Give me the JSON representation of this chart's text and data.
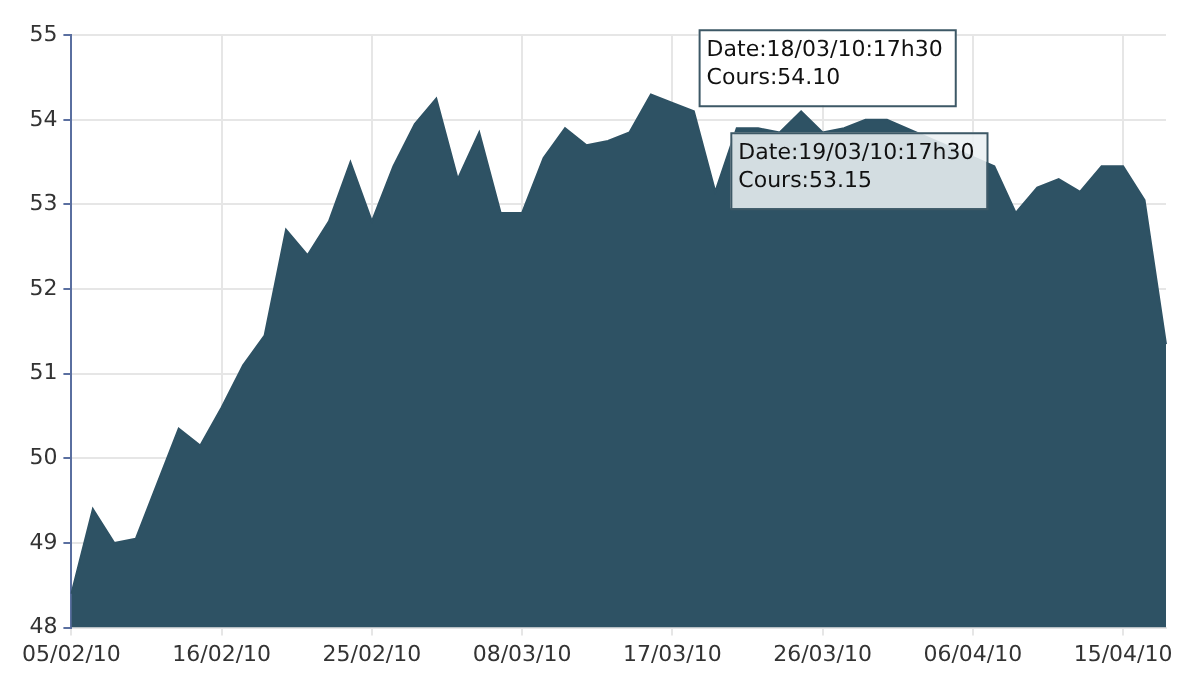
{
  "chart_data": {
    "type": "area",
    "color": "#2e5264",
    "categories": [
      "05/02/10",
      null,
      null,
      null,
      null,
      null,
      null,
      "16/02/10",
      null,
      null,
      null,
      null,
      null,
      null,
      "25/02/10",
      null,
      null,
      null,
      null,
      null,
      null,
      "08/03/10",
      null,
      null,
      null,
      null,
      null,
      null,
      "17/03/10",
      null,
      null,
      null,
      null,
      null,
      null,
      "26/03/10",
      null,
      null,
      null,
      null,
      null,
      null,
      "06/04/10",
      null,
      null,
      null,
      null,
      null,
      null,
      "15/04/10",
      null,
      null
    ],
    "values": [
      48.4,
      49.4,
      49.0,
      49.05,
      49.7,
      50.35,
      50.15,
      50.6,
      51.1,
      51.45,
      52.7,
      52.4,
      52.8,
      53.5,
      52.8,
      53.45,
      53.95,
      54.25,
      53.3,
      53.85,
      52.9,
      52.9,
      53.55,
      53.9,
      53.7,
      53.75,
      53.85,
      54.3,
      54.2,
      54.1,
      53.15,
      53.9,
      53.9,
      53.85,
      54.1,
      53.85,
      53.9,
      54.0,
      54.0,
      null,
      null,
      null,
      null,
      53.45,
      52.9,
      53.2,
      53.3,
      53.15,
      53.45,
      53.45,
      53.05,
      51.35
    ],
    "ylim": [
      48,
      55
    ],
    "yticks": [
      48,
      49,
      50,
      51,
      52,
      53,
      54,
      55
    ],
    "grid": true,
    "annotations": [
      "Date:18/03/10:17h30\nCours:54.10",
      "Date:19/03/10:17h30\nCours:53.15"
    ]
  }
}
